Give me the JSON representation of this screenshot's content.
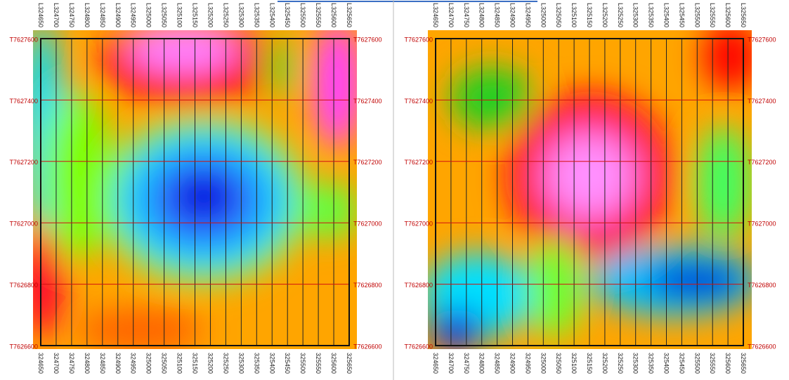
{
  "panels": [
    {
      "top_labels": [
        "L324650",
        "L324700",
        "L324750",
        "L324800",
        "L324850",
        "L324900",
        "L324950",
        "L325000",
        "L325050",
        "L325100",
        "L325150",
        "L325200",
        "L325250",
        "L325300",
        "L325350",
        "L325400",
        "L325450",
        "L325500",
        "L325550",
        "L325600",
        "L325650"
      ],
      "bottom_labels": [
        "324650",
        "324700",
        "324750",
        "324800",
        "324850",
        "324900",
        "324950",
        "325000",
        "325050",
        "325100",
        "325150",
        "325200",
        "325250",
        "325300",
        "325350",
        "325400",
        "325450",
        "325500",
        "325550",
        "325600",
        "325650"
      ],
      "left_labels": [
        "T7627600",
        "T7627400",
        "T7627200",
        "T7627000",
        "T7626800",
        "T7626600"
      ],
      "right_labels": [
        "T7627600",
        "T7627400",
        "T7627200",
        "T7627000",
        "T7626800",
        "T7626600"
      ]
    },
    {
      "top_labels": [
        "L324650",
        "L324700",
        "L324750",
        "L324800",
        "L324850",
        "L324900",
        "L324950",
        "L325000",
        "L325050",
        "L325100",
        "L325150",
        "L325200",
        "L325250",
        "L325300",
        "L325350",
        "L325400",
        "L325450",
        "L325500",
        "L325550",
        "L325600",
        "L325650"
      ],
      "bottom_labels": [
        "324650",
        "324700",
        "324750",
        "324800",
        "324850",
        "324900",
        "324950",
        "325000",
        "325050",
        "325100",
        "325150",
        "325200",
        "325250",
        "325300",
        "325350",
        "325400",
        "325450",
        "325500",
        "325550",
        "325600",
        "325650"
      ],
      "left_labels": [
        "T7627600",
        "T7627400",
        "T7627200",
        "T7627000",
        "T7626800",
        "T7626600"
      ],
      "right_labels": [
        "T7627600",
        "T7627400",
        "T7627200",
        "T7627000",
        "T7626800",
        "T7626600"
      ]
    }
  ]
}
